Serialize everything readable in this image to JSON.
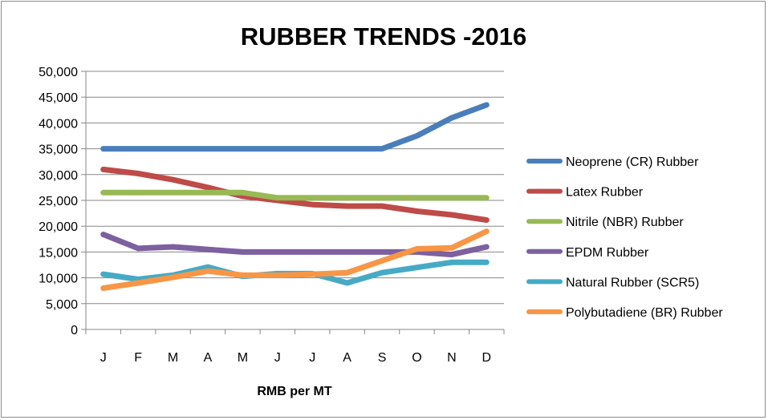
{
  "chart_data": {
    "type": "line",
    "title": "RUBBER TRENDS -2016",
    "xlabel": "RMB per MT",
    "ylabel": "",
    "ylim": [
      0,
      50000
    ],
    "ytick_step": 5000,
    "ytick_labels": [
      "0",
      "5,000",
      "10,000",
      "15,000",
      "20,000",
      "25,000",
      "30,000",
      "35,000",
      "40,000",
      "45,000",
      "50,000"
    ],
    "categories": [
      "J",
      "F",
      "M",
      "A",
      "M",
      "J",
      "J",
      "A",
      "S",
      "O",
      "N",
      "D"
    ],
    "grid": true,
    "legend_position": "right",
    "series": [
      {
        "name": "Neoprene (CR) Rubber",
        "color": "#4a7ebb",
        "values": [
          35000,
          35000,
          35000,
          35000,
          35000,
          35000,
          35000,
          35000,
          35000,
          37500,
          41000,
          43500
        ]
      },
      {
        "name": "Latex Rubber",
        "color": "#be4b48",
        "values": [
          31000,
          30200,
          29000,
          27500,
          25800,
          25000,
          24200,
          23900,
          23900,
          22900,
          22200,
          21200
        ]
      },
      {
        "name": "Nitrile (NBR) Rubber",
        "color": "#98b954",
        "values": [
          26500,
          26500,
          26500,
          26500,
          26500,
          25500,
          25500,
          25500,
          25500,
          25500,
          25500,
          25500
        ]
      },
      {
        "name": "EPDM Rubber",
        "color": "#7d60a0",
        "values": [
          18400,
          15700,
          16000,
          15500,
          15000,
          15000,
          15000,
          15000,
          15000,
          15000,
          14500,
          16000
        ]
      },
      {
        "name": "Natural Rubber (SCR5)",
        "color": "#46aac5",
        "values": [
          10700,
          9700,
          10500,
          12100,
          10300,
          10800,
          10800,
          9000,
          11000,
          12000,
          13000,
          13000
        ]
      },
      {
        "name": "Polybutadiene (BR) Rubber",
        "color": "#f79646",
        "values": [
          8000,
          9000,
          10100,
          11300,
          10500,
          10500,
          10700,
          11000,
          13300,
          15600,
          15800,
          19000
        ]
      }
    ]
  }
}
